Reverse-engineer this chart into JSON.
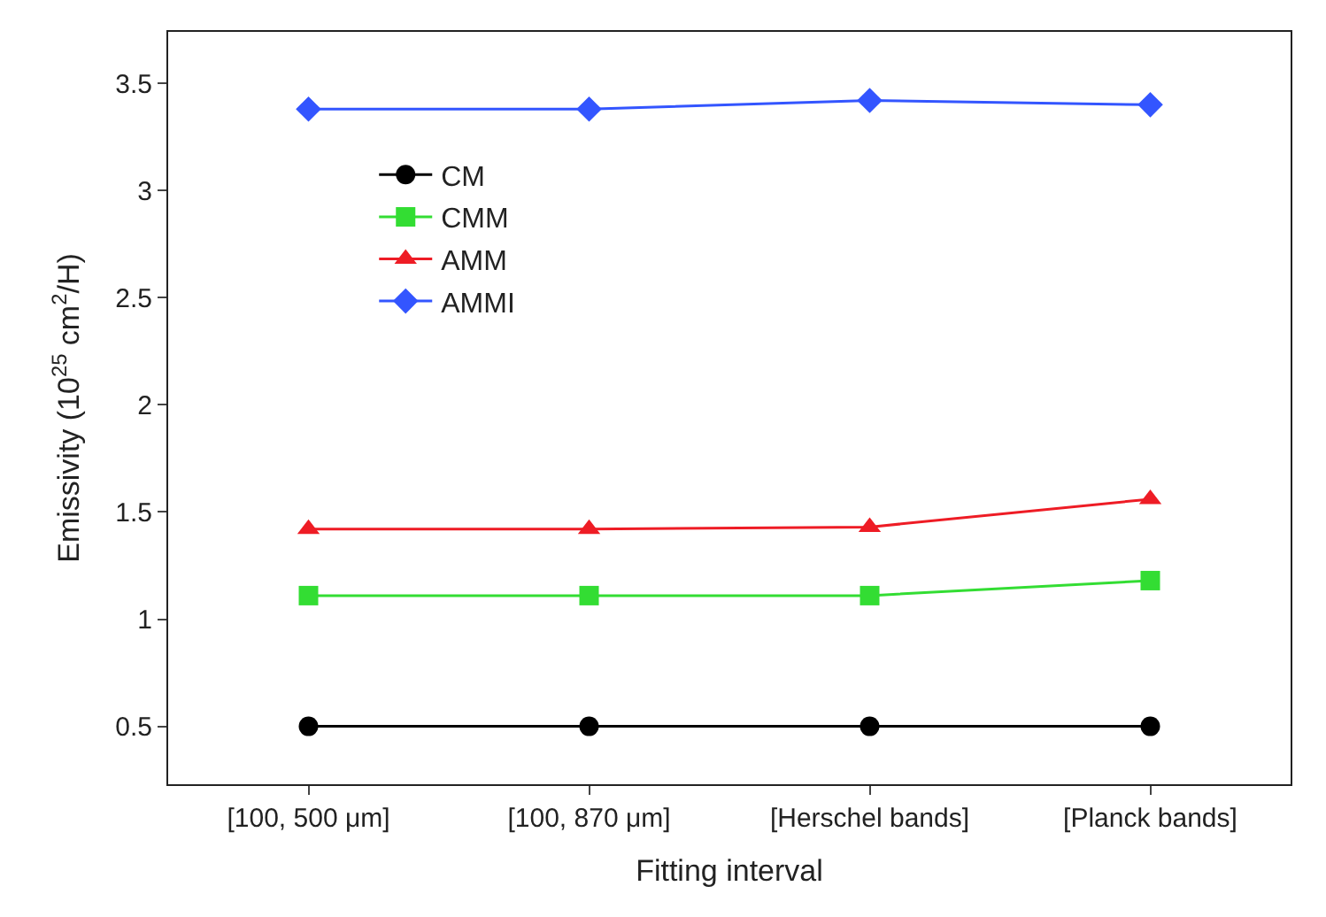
{
  "chart_data": {
    "type": "line",
    "xlabel": "Fitting interval",
    "ylabel": "Emissivity (10$^{25}$ cm$^{2}$/H)",
    "categories": [
      "[100, 500 μm]",
      "[100, 870 μm]",
      "[Herschel bands]",
      "[Planck bands]"
    ],
    "series": [
      {
        "name": "CM",
        "color": "#000000",
        "marker": "circle",
        "values": [
          0.5,
          0.5,
          0.5,
          0.5
        ]
      },
      {
        "name": "CMM",
        "color": "#33dd33",
        "marker": "square",
        "values": [
          1.11,
          1.11,
          1.11,
          1.18
        ]
      },
      {
        "name": "AMM",
        "color": "#ee1c25",
        "marker": "triangle",
        "values": [
          1.42,
          1.42,
          1.43,
          1.56
        ]
      },
      {
        "name": "AMMI",
        "color": "#3355ff",
        "marker": "diamond",
        "values": [
          3.38,
          3.38,
          3.42,
          3.4
        ]
      }
    ],
    "ylim": [
      0.23,
      3.74
    ],
    "yticks": [
      0.5,
      1,
      1.5,
      2,
      2.5,
      3,
      3.5
    ],
    "legend": "top left",
    "line_style": "solid"
  }
}
